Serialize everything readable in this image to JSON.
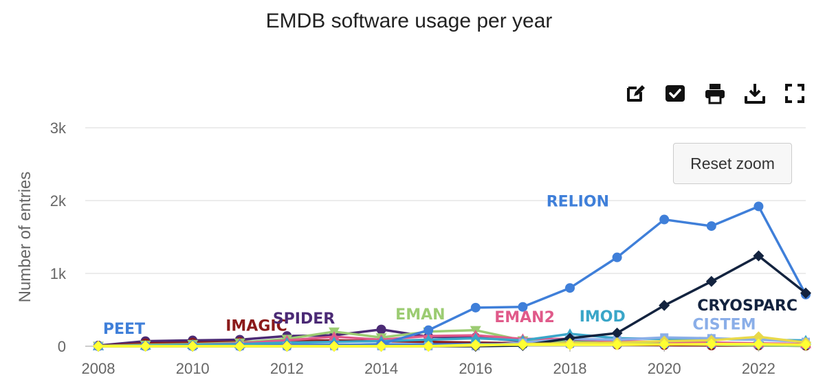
{
  "chart_data": {
    "type": "line",
    "title": "EMDB software usage per year",
    "xlabel": "",
    "ylabel": "Number of entries",
    "xlim": [
      2008,
      2023
    ],
    "ylim": [
      0,
      3000
    ],
    "x_ticks": [
      "2008",
      "2010",
      "2012",
      "2014",
      "2016",
      "2018",
      "2020",
      "2022"
    ],
    "y_ticks": [
      "0",
      "1k",
      "2k",
      "3k"
    ],
    "grid": true,
    "legend": "inline labels",
    "x": [
      2008,
      2009,
      2010,
      2011,
      2012,
      2013,
      2014,
      2015,
      2016,
      2017,
      2018,
      2019,
      2020,
      2021,
      2022,
      2023
    ],
    "series": [
      {
        "name": "SPIDER",
        "color": "#4b2a75",
        "marker": "circle",
        "values": [
          10,
          70,
          80,
          90,
          140,
          150,
          230,
          130,
          120,
          70,
          70,
          60,
          40,
          30,
          20,
          10
        ]
      },
      {
        "name": "IMAGIC",
        "color": "#8b1a1a",
        "marker": "circle",
        "values": [
          5,
          40,
          50,
          60,
          70,
          80,
          70,
          60,
          50,
          40,
          30,
          20,
          15,
          10,
          10,
          5
        ]
      },
      {
        "name": "PEET",
        "color": "#3f7fd9",
        "marker": "square",
        "values": [
          5,
          10,
          10,
          15,
          20,
          20,
          25,
          25,
          30,
          30,
          35,
          35,
          30,
          30,
          25,
          20
        ]
      },
      {
        "name": "EMAN",
        "color": "#9ccc73",
        "marker": "triangle-down",
        "values": [
          5,
          20,
          30,
          50,
          100,
          200,
          120,
          200,
          220,
          80,
          60,
          40,
          30,
          20,
          10,
          5
        ]
      },
      {
        "name": "EMAN2",
        "color": "#e05a8a",
        "marker": "triangle-up",
        "values": [
          0,
          10,
          20,
          40,
          80,
          130,
          90,
          140,
          150,
          100,
          100,
          70,
          60,
          50,
          40,
          30
        ]
      },
      {
        "name": "IMOD",
        "color": "#3aa6c8",
        "marker": "triangle-up",
        "values": [
          0,
          10,
          20,
          30,
          50,
          60,
          70,
          90,
          110,
          80,
          170,
          110,
          100,
          100,
          90,
          80
        ]
      },
      {
        "name": "CISTEM",
        "color": "#8aaee8",
        "marker": "square",
        "values": [
          0,
          0,
          0,
          0,
          0,
          0,
          0,
          0,
          0,
          50,
          100,
          90,
          120,
          110,
          90,
          60
        ]
      },
      {
        "name": "RELION",
        "color": "#3f7fd9",
        "marker": "circle",
        "values": [
          0,
          0,
          0,
          0,
          0,
          10,
          30,
          220,
          530,
          540,
          800,
          1220,
          1740,
          1650,
          1920,
          710
        ]
      },
      {
        "name": "CRYOSPARC",
        "color": "#13233f",
        "marker": "diamond",
        "values": [
          0,
          0,
          0,
          0,
          0,
          0,
          0,
          0,
          0,
          10,
          110,
          180,
          560,
          890,
          1240,
          730
        ]
      },
      {
        "name": "",
        "color": "#e8d94a",
        "marker": "diamond",
        "values": [
          0,
          0,
          0,
          0,
          0,
          0,
          0,
          0,
          10,
          30,
          40,
          50,
          70,
          80,
          130,
          50
        ]
      },
      {
        "name": "",
        "color": "#ffff33",
        "marker": "diamond",
        "values": [
          0,
          0,
          0,
          0,
          0,
          0,
          0,
          0,
          20,
          20,
          20,
          20,
          25,
          30,
          30,
          20
        ]
      }
    ],
    "annotations": [
      {
        "text": "PEET",
        "color": "#3f7fd9",
        "x": 2008.1,
        "y": 170
      },
      {
        "text": "IMAGIC",
        "color": "#8b1a1a",
        "x": 2010.7,
        "y": 210
      },
      {
        "text": "SPIDER",
        "color": "#4b2a75",
        "x": 2011.7,
        "y": 310
      },
      {
        "text": "EMAN",
        "color": "#9ccc73",
        "x": 2014.3,
        "y": 370
      },
      {
        "text": "EMAN2",
        "color": "#e05a8a",
        "x": 2016.4,
        "y": 330
      },
      {
        "text": "IMOD",
        "color": "#3aa6c8",
        "x": 2018.2,
        "y": 340
      },
      {
        "text": "CISTEM",
        "color": "#8aaee8",
        "x": 2020.6,
        "y": 230
      },
      {
        "text": "RELION",
        "color": "#3f7fd9",
        "x": 2017.5,
        "y": 1920
      },
      {
        "text": "CRYOSPARC",
        "color": "#13233f",
        "x": 2020.7,
        "y": 490
      }
    ]
  },
  "toolbar": {
    "reset_zoom_label": "Reset zoom",
    "icons": [
      "edit-icon",
      "check-icon",
      "print-icon",
      "download-icon",
      "fullscreen-icon"
    ]
  }
}
